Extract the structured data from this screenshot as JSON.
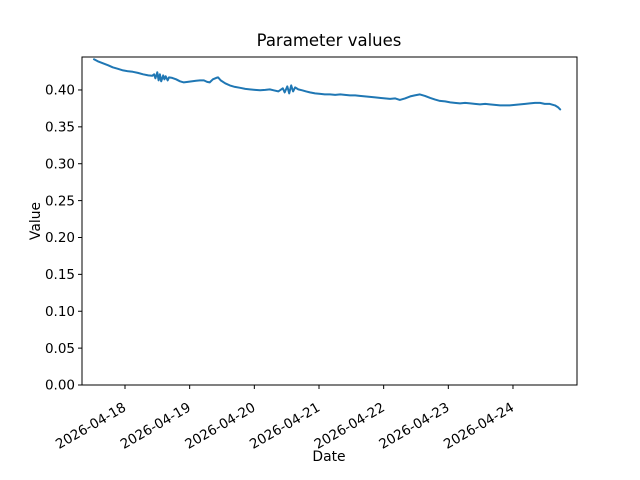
{
  "chart_data": {
    "type": "line",
    "title": "Parameter values",
    "xlabel": "Date",
    "ylabel": "Value",
    "grid": false,
    "legend": null,
    "background_color": "#ffffff",
    "axis_color": "#000000",
    "x_axis": {
      "unit": "days relative to 2026-04-18",
      "tick_positions": [
        0,
        1,
        2,
        3,
        4,
        5,
        6
      ],
      "tick_labels": [
        "2026-04-18",
        "2026-04-19",
        "2026-04-20",
        "2026-04-21",
        "2026-04-22",
        "2026-04-23",
        "2026-04-24"
      ],
      "tick_rotation_deg": 30,
      "xlim": [
        -0.665,
        6.99
      ]
    },
    "y_axis": {
      "tick_values": [
        0.0,
        0.05,
        0.1,
        0.15,
        0.2,
        0.25,
        0.3,
        0.35,
        0.4
      ],
      "tick_labels": [
        "0.00",
        "0.05",
        "0.10",
        "0.15",
        "0.20",
        "0.25",
        "0.30",
        "0.35",
        "0.40"
      ],
      "ylim": [
        0.0,
        0.4447
      ]
    },
    "series": [
      {
        "name": "parameter-values",
        "color": "#1f77b4",
        "points": [
          [
            -0.48,
            0.4416
          ],
          [
            -0.42,
            0.4389
          ],
          [
            -0.34,
            0.4362
          ],
          [
            -0.26,
            0.4335
          ],
          [
            -0.19,
            0.4307
          ],
          [
            -0.11,
            0.4287
          ],
          [
            -0.03,
            0.4266
          ],
          [
            0.05,
            0.4253
          ],
          [
            0.12,
            0.4246
          ],
          [
            0.2,
            0.4232
          ],
          [
            0.28,
            0.4212
          ],
          [
            0.36,
            0.4198
          ],
          [
            0.42,
            0.4192
          ],
          [
            0.45,
            0.4212
          ],
          [
            0.47,
            0.4158
          ],
          [
            0.5,
            0.4239
          ],
          [
            0.52,
            0.413
          ],
          [
            0.54,
            0.4212
          ],
          [
            0.56,
            0.4117
          ],
          [
            0.59,
            0.4198
          ],
          [
            0.61,
            0.4144
          ],
          [
            0.63,
            0.4185
          ],
          [
            0.66,
            0.413
          ],
          [
            0.68,
            0.4171
          ],
          [
            0.73,
            0.4164
          ],
          [
            0.79,
            0.4144
          ],
          [
            0.85,
            0.4117
          ],
          [
            0.91,
            0.4103
          ],
          [
            0.97,
            0.411
          ],
          [
            1.04,
            0.4117
          ],
          [
            1.1,
            0.4124
          ],
          [
            1.16,
            0.413
          ],
          [
            1.22,
            0.413
          ],
          [
            1.27,
            0.411
          ],
          [
            1.31,
            0.4103
          ],
          [
            1.36,
            0.4144
          ],
          [
            1.41,
            0.4164
          ],
          [
            1.44,
            0.4171
          ],
          [
            1.48,
            0.413
          ],
          [
            1.55,
            0.409
          ],
          [
            1.62,
            0.4062
          ],
          [
            1.7,
            0.4042
          ],
          [
            1.78,
            0.4029
          ],
          [
            1.86,
            0.4015
          ],
          [
            1.93,
            0.4008
          ],
          [
            2.01,
            0.4001
          ],
          [
            2.09,
            0.3995
          ],
          [
            2.17,
            0.4001
          ],
          [
            2.24,
            0.4008
          ],
          [
            2.3,
            0.3995
          ],
          [
            2.37,
            0.3981
          ],
          [
            2.44,
            0.4022
          ],
          [
            2.47,
            0.3967
          ],
          [
            2.51,
            0.4049
          ],
          [
            2.54,
            0.3954
          ],
          [
            2.57,
            0.4062
          ],
          [
            2.6,
            0.3981
          ],
          [
            2.63,
            0.4035
          ],
          [
            2.68,
            0.4008
          ],
          [
            2.74,
            0.3995
          ],
          [
            2.8,
            0.3981
          ],
          [
            2.86,
            0.3967
          ],
          [
            2.94,
            0.3954
          ],
          [
            3.02,
            0.3947
          ],
          [
            3.09,
            0.394
          ],
          [
            3.17,
            0.394
          ],
          [
            3.25,
            0.3933
          ],
          [
            3.33,
            0.394
          ],
          [
            3.4,
            0.3933
          ],
          [
            3.48,
            0.3927
          ],
          [
            3.56,
            0.3927
          ],
          [
            3.63,
            0.392
          ],
          [
            3.71,
            0.3913
          ],
          [
            3.79,
            0.3906
          ],
          [
            3.87,
            0.3899
          ],
          [
            3.94,
            0.3893
          ],
          [
            4.02,
            0.3886
          ],
          [
            4.1,
            0.3879
          ],
          [
            4.18,
            0.3886
          ],
          [
            4.25,
            0.3865
          ],
          [
            4.33,
            0.3886
          ],
          [
            4.41,
            0.3913
          ],
          [
            4.48,
            0.3927
          ],
          [
            4.56,
            0.394
          ],
          [
            4.64,
            0.392
          ],
          [
            4.72,
            0.3893
          ],
          [
            4.79,
            0.3872
          ],
          [
            4.87,
            0.3852
          ],
          [
            4.95,
            0.3845
          ],
          [
            5.03,
            0.3832
          ],
          [
            5.1,
            0.3825
          ],
          [
            5.18,
            0.3818
          ],
          [
            5.26,
            0.3825
          ],
          [
            5.34,
            0.3818
          ],
          [
            5.41,
            0.3811
          ],
          [
            5.49,
            0.3804
          ],
          [
            5.57,
            0.3811
          ],
          [
            5.64,
            0.3804
          ],
          [
            5.72,
            0.3798
          ],
          [
            5.8,
            0.3791
          ],
          [
            5.88,
            0.3791
          ],
          [
            5.95,
            0.3791
          ],
          [
            6.03,
            0.3798
          ],
          [
            6.11,
            0.3804
          ],
          [
            6.19,
            0.3811
          ],
          [
            6.26,
            0.3818
          ],
          [
            6.34,
            0.3825
          ],
          [
            6.42,
            0.3825
          ],
          [
            6.49,
            0.3811
          ],
          [
            6.57,
            0.3811
          ],
          [
            6.65,
            0.3791
          ],
          [
            6.7,
            0.3764
          ],
          [
            6.73,
            0.3736
          ]
        ]
      }
    ]
  }
}
